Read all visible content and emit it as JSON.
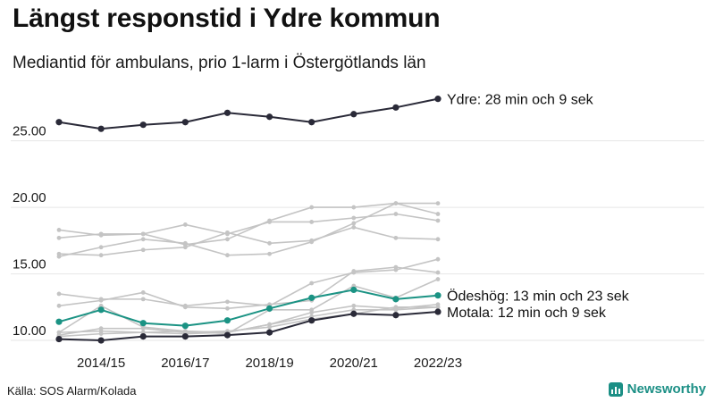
{
  "title": "Längst responstid i Ydre kommun",
  "subtitle": "Mediantid för ambulans, prio 1-larm i Östergötlands län",
  "source": "Källa: SOS Alarm/Kolada",
  "brand": "Newsworthy",
  "colors": {
    "highlight_dark": "#2a2a38",
    "highlight_teal": "#1b9384",
    "background_gray": "#c4c4c4",
    "grid": "#e6e6e6",
    "brand": "#1b8f85"
  },
  "chart_data": {
    "type": "line",
    "x": [
      2013,
      2014,
      2015,
      2016,
      2017,
      2018,
      2019,
      2020,
      2021,
      2022
    ],
    "xticks": [
      2014,
      2016,
      2018,
      2020,
      2022
    ],
    "xtick_labels": [
      "2014/15",
      "2016/17",
      "2018/19",
      "2020/21",
      "2022/23"
    ],
    "yticks": [
      10,
      15,
      20,
      25
    ],
    "ytick_labels": [
      "10.00",
      "15.00",
      "20.00",
      "25.00"
    ],
    "ylim": [
      9.4,
      29.2
    ],
    "grid": true,
    "series": [
      {
        "name": "Ydre",
        "highlight": true,
        "color": "#2a2a38",
        "label": "Ydre: 28 min och 9 sek",
        "values": [
          26.4,
          25.9,
          26.2,
          26.4,
          27.1,
          26.8,
          26.4,
          27.0,
          27.5,
          28.15
        ]
      },
      {
        "name": "Ödeshög",
        "highlight": true,
        "color": "#1b9384",
        "label": "Ödeshög: 13 min och 23 sek",
        "values": [
          11.4,
          12.3,
          11.3,
          11.1,
          11.5,
          12.4,
          13.2,
          13.8,
          13.1,
          13.38
        ]
      },
      {
        "name": "Motala",
        "highlight": true,
        "color": "#2a2a38",
        "label": "Motala: 12 min och 9 sek",
        "values": [
          10.1,
          10.0,
          10.3,
          10.3,
          10.4,
          10.6,
          11.5,
          12.0,
          11.9,
          12.15
        ]
      },
      {
        "values": [
          18.3,
          17.9,
          18.0,
          18.7,
          18.0,
          18.9,
          18.9,
          19.2,
          19.5,
          19.0
        ]
      },
      {
        "values": [
          17.7,
          18.0,
          18.0,
          17.2,
          17.6,
          19.0,
          20.0,
          20.0,
          20.3,
          20.3
        ]
      },
      {
        "values": [
          16.5,
          16.4,
          16.8,
          17.0,
          18.1,
          17.3,
          17.5,
          18.5,
          17.7,
          17.6
        ]
      },
      {
        "values": [
          16.3,
          17.0,
          17.6,
          17.3,
          16.4,
          16.5,
          17.4,
          18.8,
          20.3,
          19.5
        ]
      },
      {
        "values": [
          13.5,
          13.1,
          13.1,
          12.6,
          12.9,
          12.6,
          14.3,
          15.1,
          15.3,
          16.1
        ]
      },
      {
        "values": [
          12.6,
          13.0,
          13.6,
          12.5,
          12.4,
          12.7,
          13.0,
          15.2,
          15.5,
          15.1
        ]
      },
      {
        "values": [
          10.6,
          12.6,
          11.0,
          10.7,
          10.5,
          12.3,
          12.3,
          14.1,
          13.2,
          14.6
        ]
      },
      {
        "values": [
          10.6,
          10.7,
          10.6,
          10.7,
          10.6,
          11.2,
          12.1,
          12.6,
          12.4,
          12.7
        ]
      },
      {
        "values": [
          10.4,
          10.9,
          10.9,
          10.6,
          10.7,
          11.0,
          11.6,
          12.0,
          12.5,
          12.5
        ]
      },
      {
        "values": [
          10.3,
          10.5,
          10.6,
          10.5,
          10.6,
          11.2,
          11.8,
          12.3,
          12.3,
          12.5
        ]
      }
    ]
  }
}
